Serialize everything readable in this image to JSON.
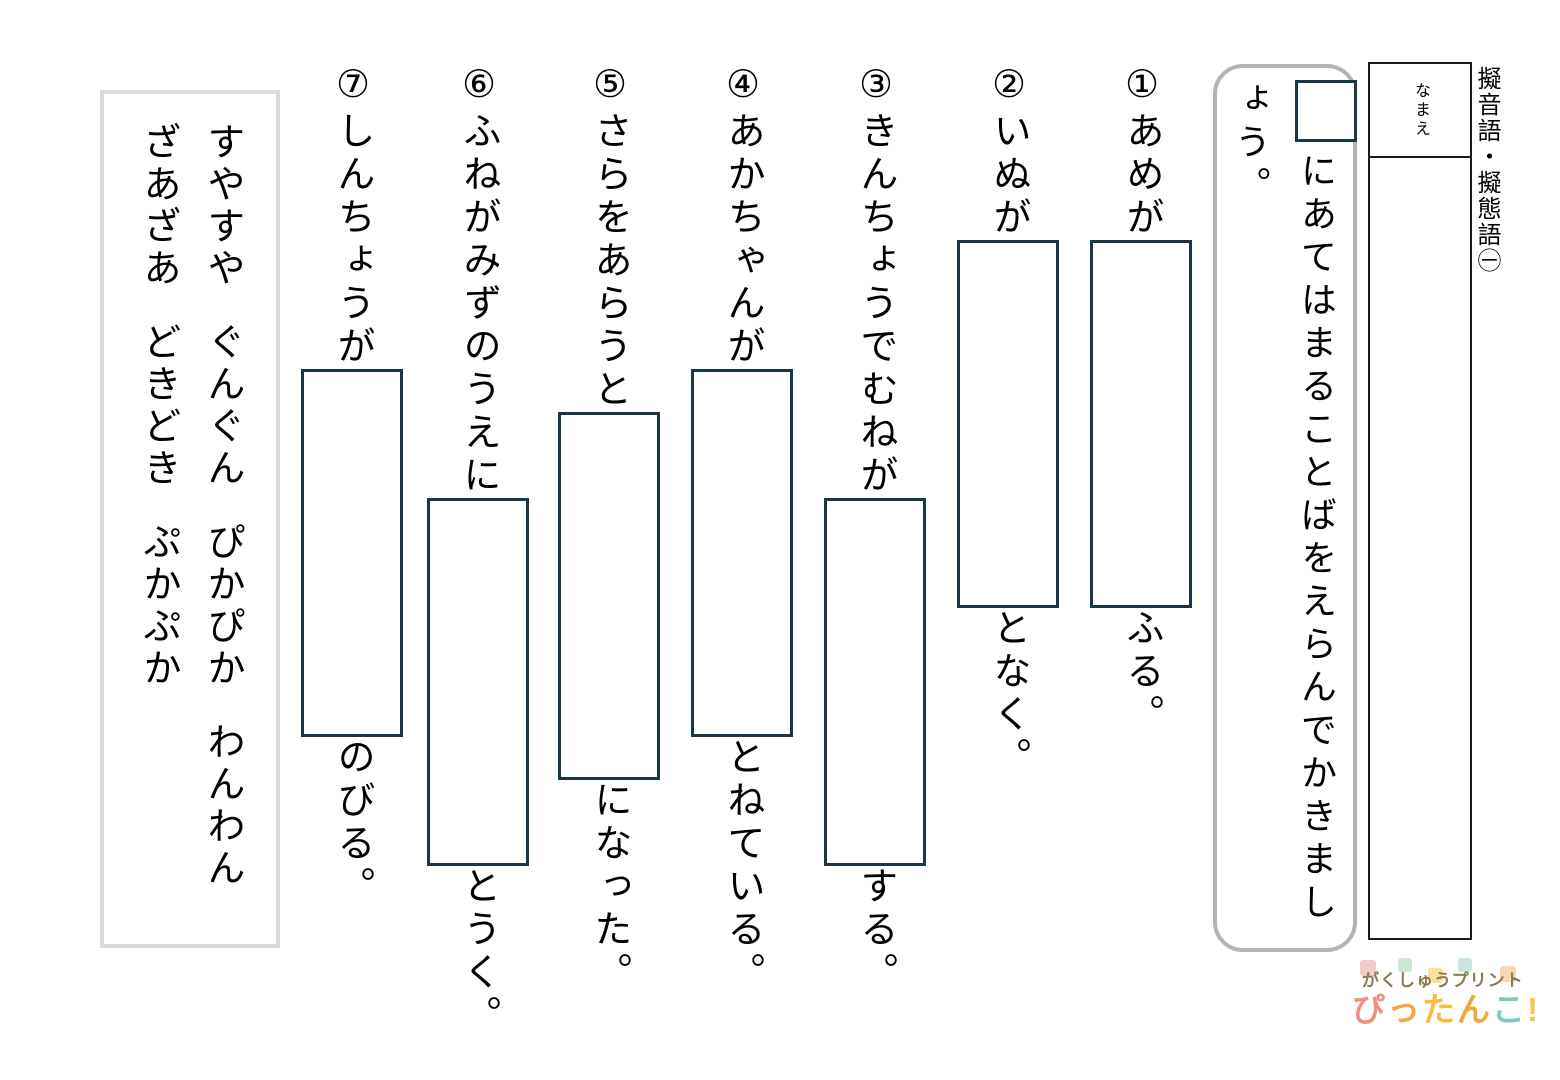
{
  "title": "擬音語・擬態語㊀",
  "name_box": {
    "label": "なまえ"
  },
  "instruction": {
    "text": "にあてはまることばをえらんでかきましょう。"
  },
  "questions": [
    {
      "number": "①",
      "lead": "あめが",
      "tail": "ふる。"
    },
    {
      "number": "②",
      "lead": "いぬが",
      "tail": "となく。"
    },
    {
      "number": "③",
      "lead": "きんちょうでむねが",
      "tail": "する。"
    },
    {
      "number": "④",
      "lead": "あかちゃんが",
      "tail": "とねている。"
    },
    {
      "number": "⑤",
      "lead": "さらをあらうと",
      "tail": "になった。"
    },
    {
      "number": "⑥",
      "lead": "ふねがみずのうえに",
      "tail": "とうく。"
    },
    {
      "number": "⑦",
      "lead": "しんちょうが",
      "tail": "のびる。"
    }
  ],
  "word_bank": {
    "column_right": [
      "すやすや",
      "ぐんぐん",
      "ぴかぴか",
      "わんわん"
    ],
    "column_left": [
      "ざあざあ",
      "どきどき",
      "ぷかぷか"
    ]
  },
  "logo": {
    "line1": "がくしゅうプリント",
    "line1_color": "#8b7950",
    "line2": [
      {
        "char": "ぴ",
        "color": "#f0917c"
      },
      {
        "char": "っ",
        "color": "#f6a93e"
      },
      {
        "char": "た",
        "color": "#f6bb3f"
      },
      {
        "char": "ん",
        "color": "#f2a73c"
      },
      {
        "char": "こ",
        "color": "#7dc8ba"
      },
      {
        "char": "!",
        "color": "#f8c54d"
      }
    ],
    "accent_squares": [
      "#f6c9ca",
      "#cde8d2",
      "#fbe098",
      "#c8e5df",
      "#f8d8b4"
    ]
  },
  "colors": {
    "answer_box_border": "#1b3645",
    "instruction_border": "#b3b3b3",
    "word_bank_border": "#d9d9d9",
    "text": "#000000"
  }
}
